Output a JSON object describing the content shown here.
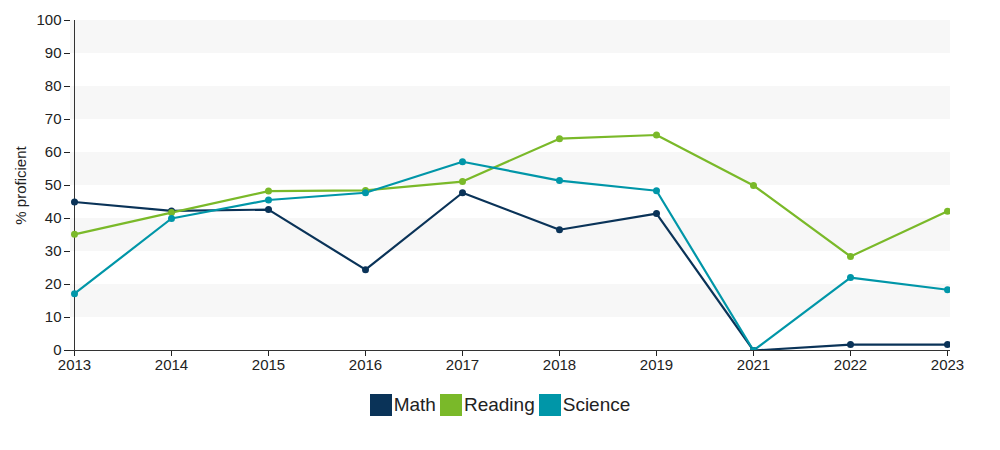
{
  "chart_data": {
    "type": "line",
    "y_label": "% proficient",
    "categories": [
      "2013",
      "2014",
      "2015",
      "2016",
      "2017",
      "2018",
      "2019",
      "2021",
      "2022",
      "2023"
    ],
    "series": [
      {
        "name": "Math",
        "color": "#0a3358",
        "marker": "circle",
        "values": [
          45,
          42.3,
          42.7,
          24.5,
          47.8,
          36.6,
          41.5,
          0,
          1.8,
          1.8
        ]
      },
      {
        "name": "Reading",
        "color": "#7ab929",
        "marker": "circle",
        "values": [
          35.2,
          41.8,
          48.3,
          48.5,
          51.2,
          64.2,
          65.3,
          50,
          28.5,
          42.2
        ]
      },
      {
        "name": "Science",
        "color": "#0096a8",
        "marker": "circle",
        "values": [
          17.2,
          40,
          45.6,
          47.8,
          57.2,
          51.5,
          48.4,
          0,
          22.1,
          18.4
        ]
      }
    ],
    "ylim": [
      0,
      100
    ],
    "yticks": [
      0,
      10,
      20,
      30,
      40,
      50,
      60,
      70,
      80,
      90,
      100
    ],
    "grid": true,
    "legend": "bottom"
  }
}
